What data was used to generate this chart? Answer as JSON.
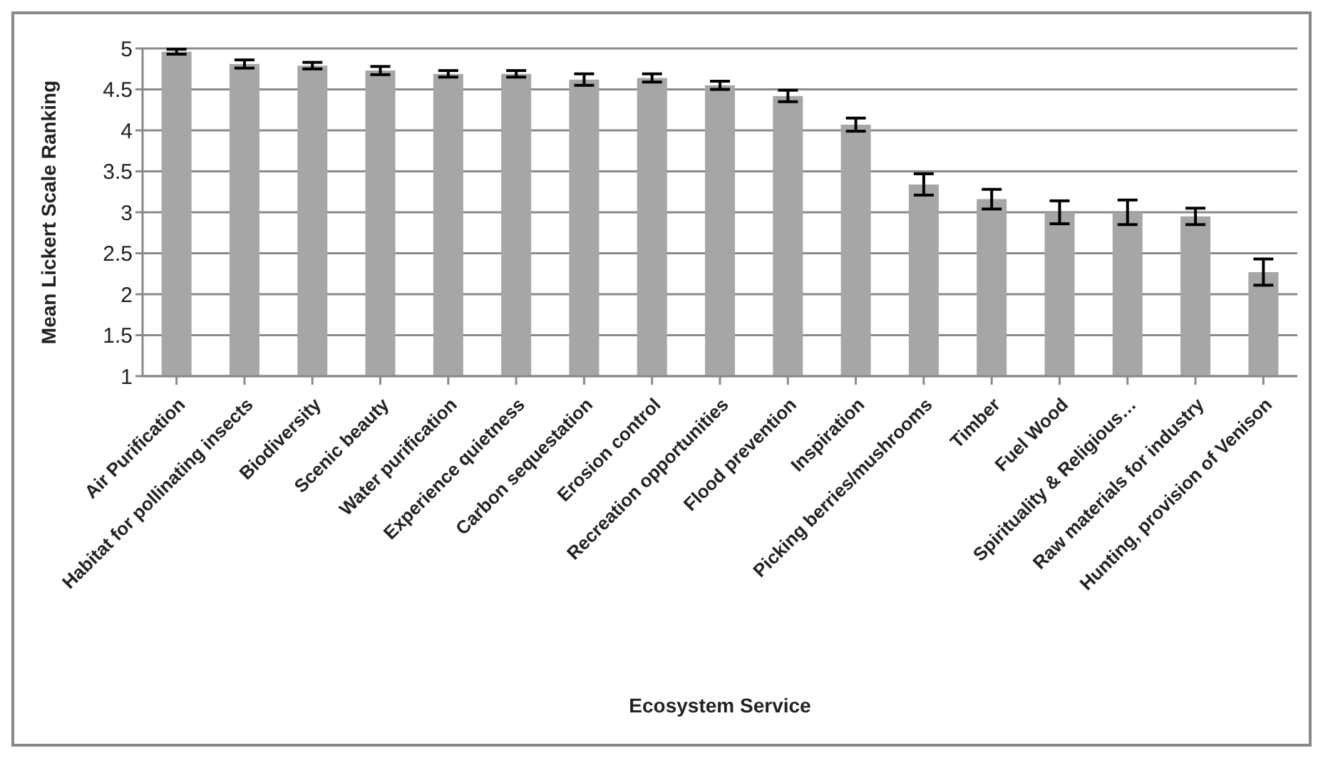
{
  "chart_data": {
    "type": "bar",
    "xlabel": "Ecosystem Service",
    "ylabel": "Mean Lickert Scale Ranking",
    "categories": [
      "Air Purification",
      "Habitat for pollinating insects",
      "Biodiversity",
      "Scenic beauty",
      "Water purification",
      "Experience quietness",
      "Carbon sequestation",
      "Erosion control",
      "Recreation opportunities",
      "Flood prevention",
      "Inspiration",
      "Picking berries/mushrooms",
      "Timber",
      "Fuel Wood",
      "Spirituality & Religious…",
      "Raw materials for industry",
      "Hunting, provision of Venison"
    ],
    "values": [
      4.96,
      4.81,
      4.79,
      4.73,
      4.69,
      4.69,
      4.62,
      4.64,
      4.55,
      4.42,
      4.07,
      3.34,
      3.16,
      3.0,
      3.0,
      2.95,
      2.27
    ],
    "errors": [
      0.03,
      0.05,
      0.04,
      0.05,
      0.04,
      0.04,
      0.07,
      0.05,
      0.05,
      0.07,
      0.08,
      0.13,
      0.12,
      0.14,
      0.15,
      0.1,
      0.16
    ],
    "color": "#a6a6a6",
    "ylim": [
      1,
      5
    ],
    "yticks": [
      1,
      1.5,
      2,
      2.5,
      3,
      3.5,
      4,
      4.5,
      5
    ],
    "grid": "y"
  }
}
